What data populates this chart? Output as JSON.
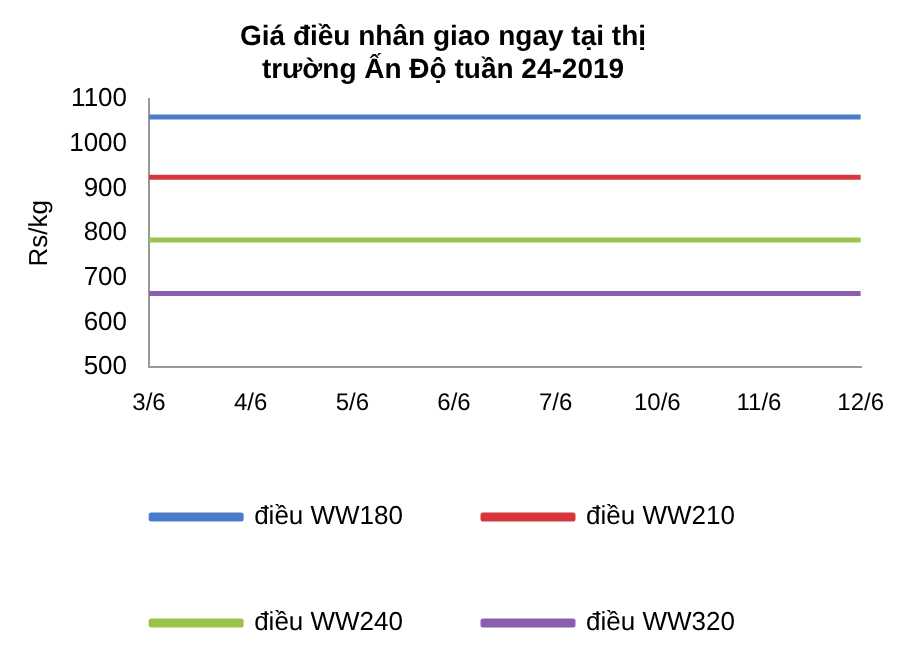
{
  "chart_data": {
    "type": "line",
    "title": [
      "Giá điều nhân giao ngay tại thị",
      "trường Ấn Độ tuần 24-2019"
    ],
    "ylabel": "Rs/kg",
    "categories": [
      "3/6",
      "4/6",
      "5/6",
      "6/6",
      "7/6",
      "10/6",
      "11/6",
      "12/6"
    ],
    "series": [
      {
        "name": "điều WW180",
        "color": "#4a7cc9",
        "values": [
          1060,
          1060,
          1060,
          1060,
          1060,
          1060,
          1060,
          1060
        ]
      },
      {
        "name": "điều WW210",
        "color": "#d7373a",
        "values": [
          925,
          925,
          925,
          925,
          925,
          925,
          925,
          925
        ]
      },
      {
        "name": "điều WW240",
        "color": "#9bc34a",
        "values": [
          785,
          785,
          785,
          785,
          785,
          785,
          785,
          785
        ]
      },
      {
        "name": "điều WW320",
        "color": "#8a5fb0",
        "values": [
          665,
          665,
          665,
          665,
          665,
          665,
          665,
          665
        ]
      }
    ],
    "ylim": [
      500,
      1100
    ],
    "yticks": [
      500,
      600,
      700,
      800,
      900,
      1000,
      1100
    ],
    "grid": false,
    "legend": "bottom",
    "marker": "none",
    "line_style": "solid"
  }
}
